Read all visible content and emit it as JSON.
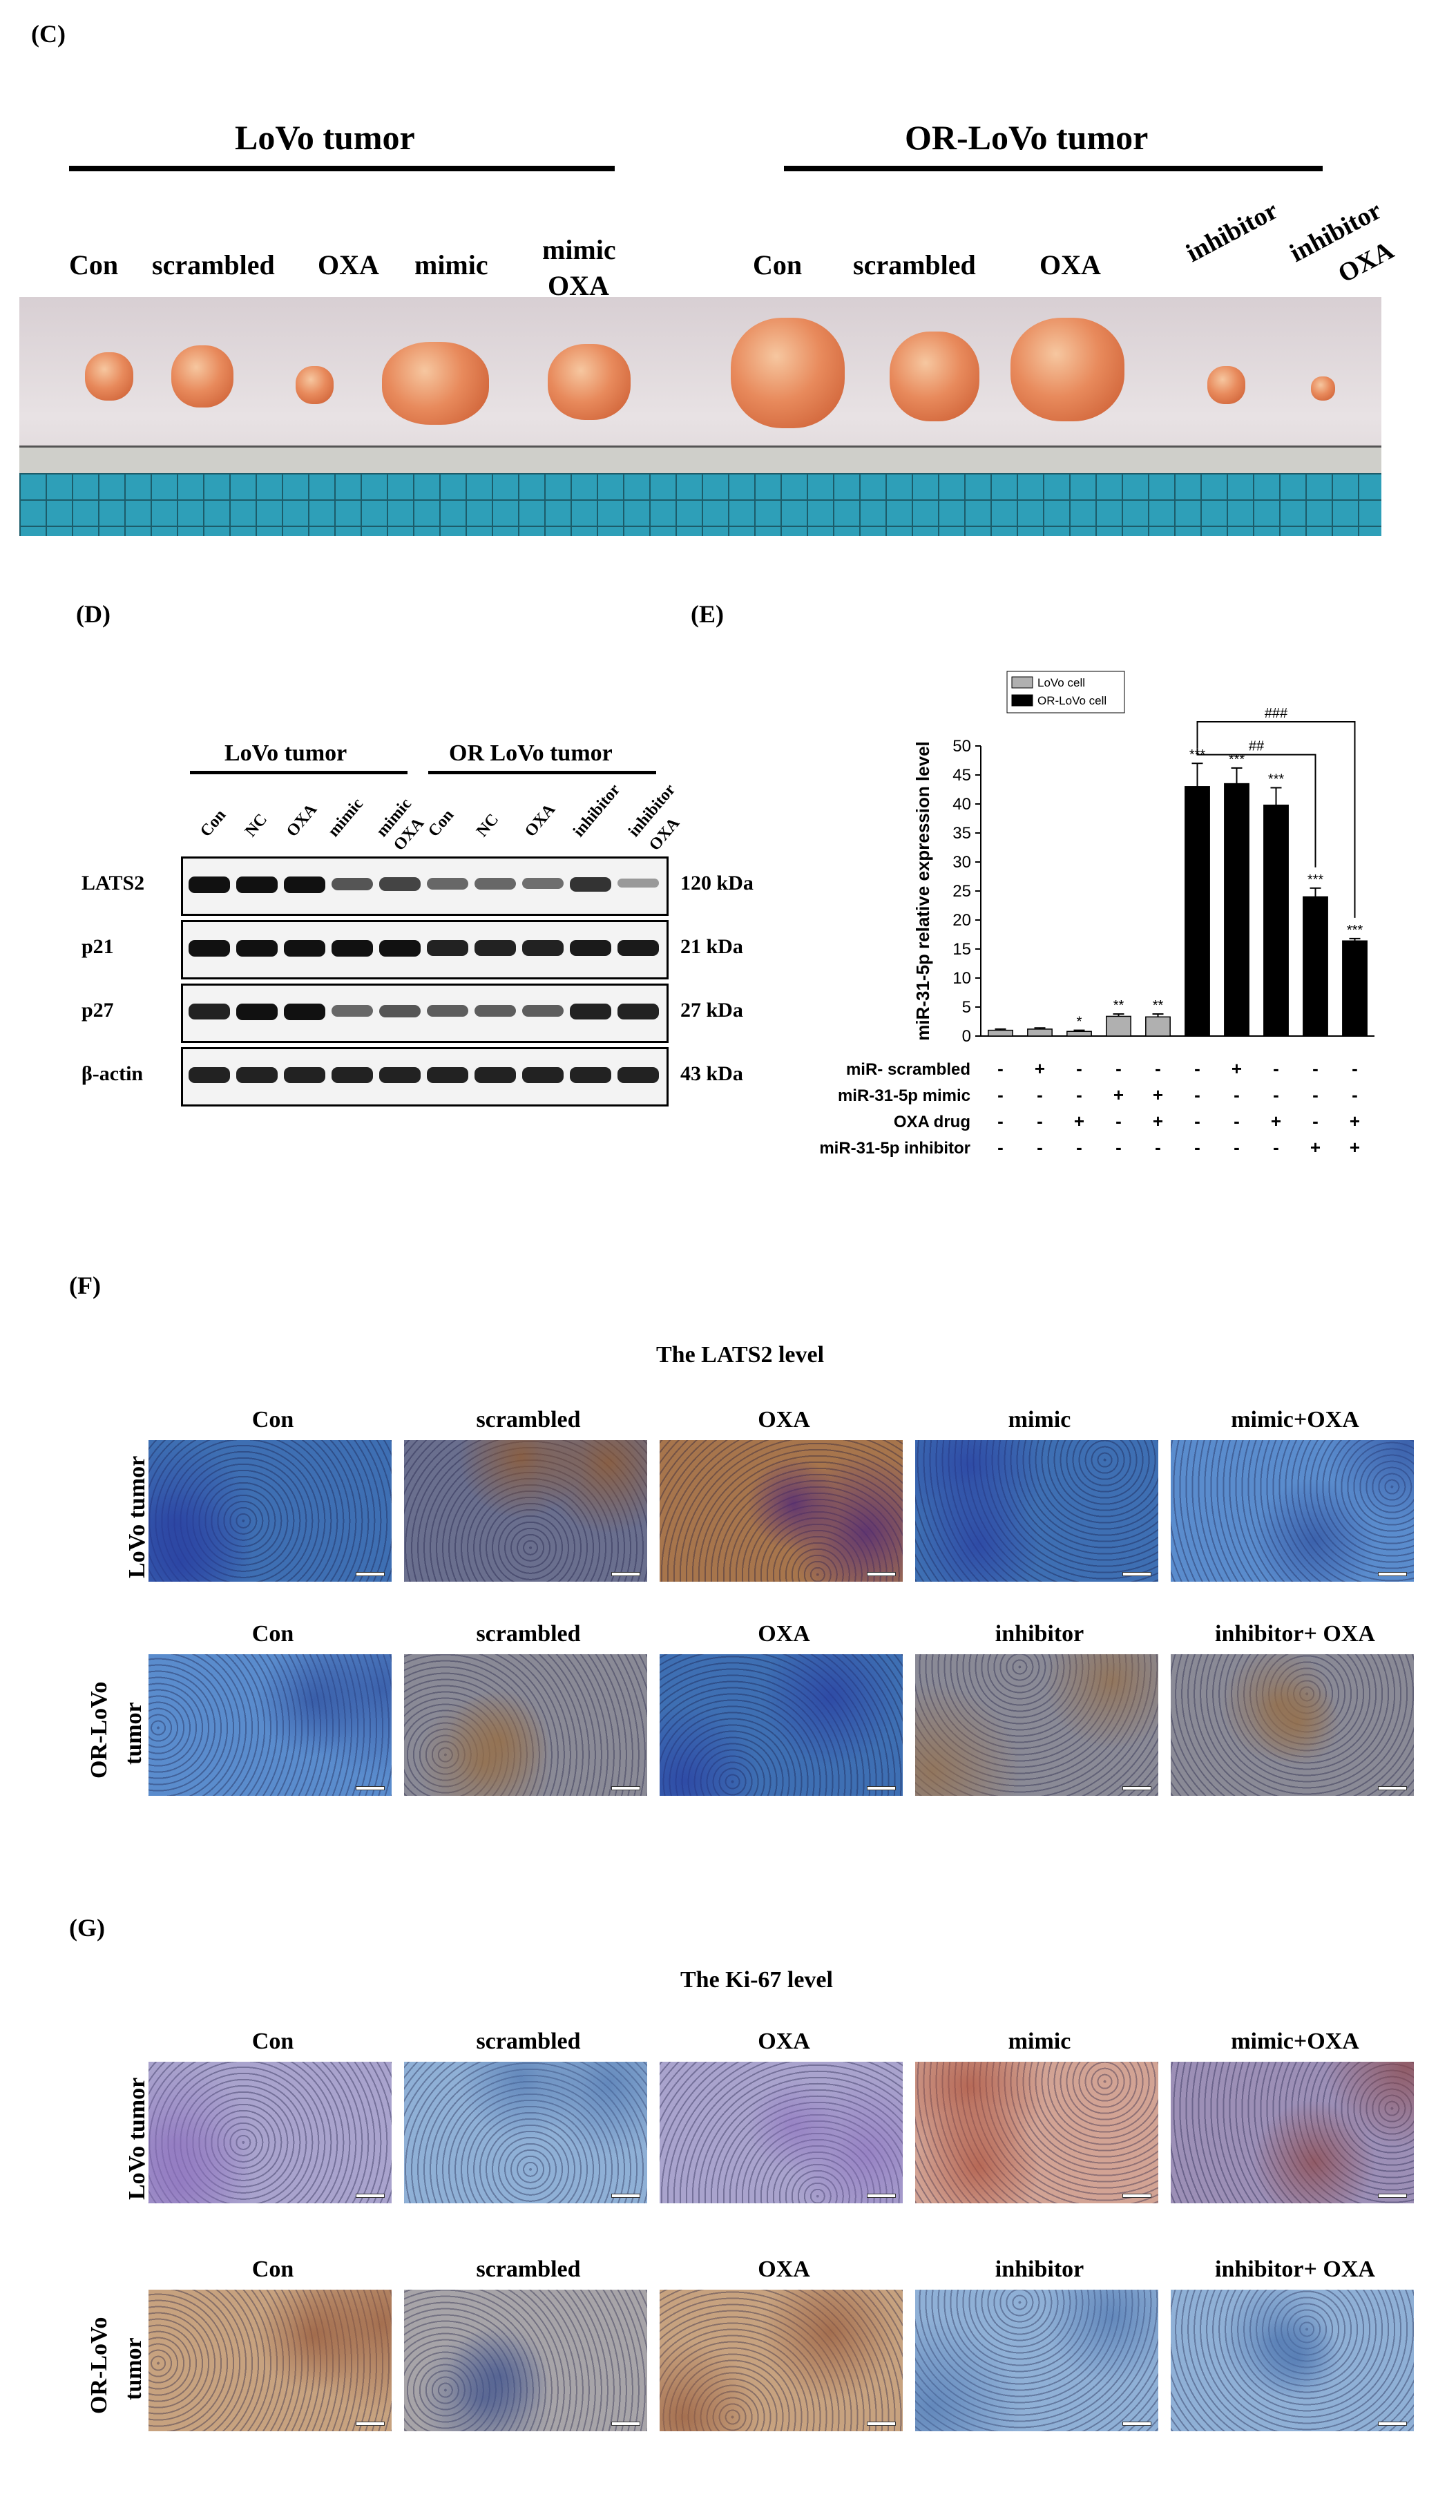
{
  "panel_c": {
    "label": "(C)",
    "group_left": "LoVo tumor",
    "group_right": "OR-LoVo tumor",
    "labels_left": [
      "Con",
      "scrambled",
      "OXA",
      "mimic"
    ],
    "label_mimic_oxa_1": "mimic",
    "label_mimic_oxa_2": "OXA",
    "labels_right": [
      "Con",
      "scrambled",
      "OXA"
    ],
    "label_inhibitor": "inhibitor",
    "label_inh_oxa_1": "inhibitor",
    "label_inh_oxa_2": "OXA"
  },
  "panel_d": {
    "label": "(D)",
    "group_left": "LoVo tumor",
    "group_right": "OR LoVo tumor",
    "lanes": [
      "Con",
      "NC",
      "OXA",
      "mimic",
      "mimic",
      "Con",
      "NC",
      "OXA",
      "inhibitor",
      "inhibitor"
    ],
    "lane_oxa_a": "OXA",
    "lane_oxa_b": "OXA",
    "proteins": [
      "LATS2",
      "p21",
      "p27",
      "β-actin"
    ],
    "sizes": [
      "120 kDa",
      "21 kDa",
      "27 kDa",
      "43 kDa"
    ]
  },
  "panel_e": {
    "label": "(E)",
    "rows": [
      {
        "label": "miR- scrambled",
        "marks": [
          "-",
          "+",
          "-",
          "-",
          "-",
          "-",
          "+",
          "-",
          "-",
          "-"
        ]
      },
      {
        "label": "miR-31-5p mimic",
        "marks": [
          "-",
          "-",
          "-",
          "+",
          "+",
          "-",
          "-",
          "-",
          "-",
          "-"
        ]
      },
      {
        "label": "OXA drug",
        "marks": [
          "-",
          "-",
          "+",
          "-",
          "+",
          "-",
          "-",
          "+",
          "-",
          "+"
        ]
      },
      {
        "label": "miR-31-5p inhibitor",
        "marks": [
          "-",
          "-",
          "-",
          "-",
          "-",
          "-",
          "-",
          "-",
          "+",
          "+"
        ]
      }
    ]
  },
  "chart_data": {
    "type": "bar",
    "ylabel": "miR-31-5p relative expression level",
    "ylim": [
      0,
      50
    ],
    "yticks": [
      0,
      5,
      10,
      15,
      20,
      25,
      30,
      35,
      40,
      45,
      50
    ],
    "legend": [
      "LoVo cell",
      "OR-LoVo cell"
    ],
    "legend_position": "top-left",
    "series": [
      {
        "name": "LoVo cell",
        "color": "#b0b0b0",
        "values": [
          1.0,
          1.2,
          0.8,
          3.4,
          3.3
        ],
        "errors": [
          0.2,
          0.2,
          0.2,
          0.4,
          0.5
        ],
        "stars": [
          "",
          "",
          "*",
          "**",
          "**"
        ]
      },
      {
        "name": "OR-LoVo cell",
        "color": "#000000",
        "values": [
          43.0,
          43.5,
          39.8,
          24.0,
          16.4
        ],
        "errors": [
          4.0,
          2.7,
          3.0,
          1.5,
          0.4
        ],
        "stars": [
          "***",
          "***",
          "***",
          "***",
          "***"
        ]
      }
    ],
    "brackets": [
      {
        "from": 6,
        "to": 9,
        "label": "##"
      },
      {
        "from": 6,
        "to": 10,
        "label": "###"
      }
    ]
  },
  "panel_f": {
    "label": "(F)",
    "title": "The LATS2 level",
    "row1_label": "LoVo tumor",
    "row2_label_1": "OR-LoVo",
    "row2_label_2": "tumor",
    "row1_cols": [
      "Con",
      "scrambled",
      "OXA",
      "mimic",
      "mimic+OXA"
    ],
    "row2_cols": [
      "Con",
      "scrambled",
      "OXA",
      "inhibitor",
      "inhibitor+ OXA"
    ]
  },
  "panel_g": {
    "label": "(G)",
    "title": "The Ki-67 level",
    "row1_label": "LoVo tumor",
    "row2_label_1": "OR-LoVo",
    "row2_label_2": "tumor",
    "row1_cols": [
      "Con",
      "scrambled",
      "OXA",
      "mimic",
      "mimic+OXA"
    ],
    "row2_cols": [
      "Con",
      "scrambled",
      "OXA",
      "inhibitor",
      "inhibitor+ OXA"
    ]
  }
}
